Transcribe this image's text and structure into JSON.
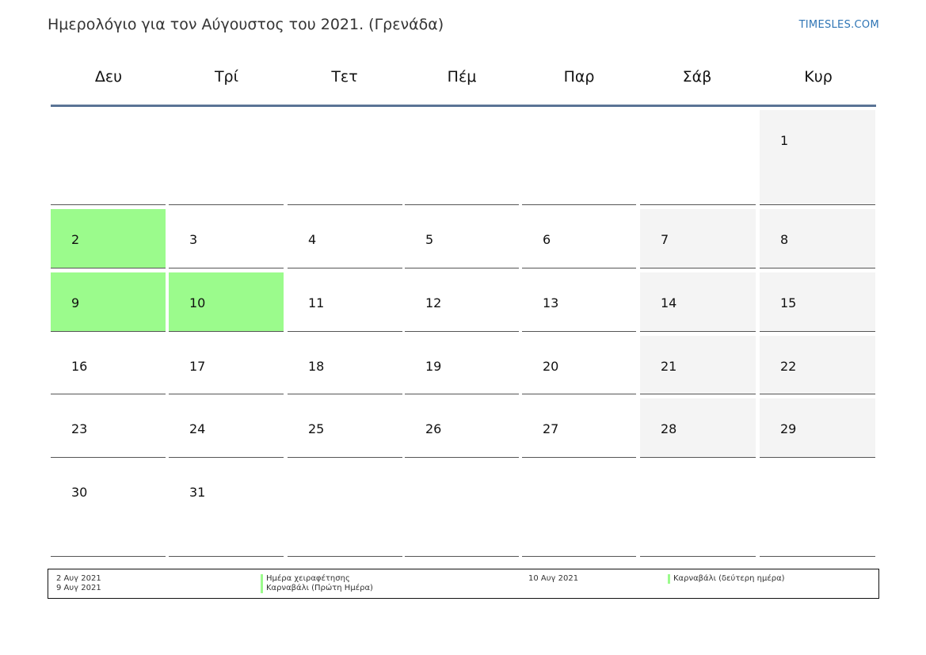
{
  "header": {
    "title": "Ημερολόγιο για τον Αύγουστος του 2021. (Γρενάδα)",
    "site": "TIMESLES.COM"
  },
  "colors": {
    "holiday": "#9bfb8c",
    "weekend": "#f4f4f4",
    "header_rule": "#5a7495",
    "link": "#2f75b5"
  },
  "weekdays": [
    "Δευ",
    "Τρί",
    "Τετ",
    "Πέμ",
    "Παρ",
    "Σάβ",
    "Κυρ"
  ],
  "weeks": [
    [
      "",
      "",
      "",
      "",
      "",
      "",
      "1"
    ],
    [
      "2",
      "3",
      "4",
      "5",
      "6",
      "7",
      "8"
    ],
    [
      "9",
      "10",
      "11",
      "12",
      "13",
      "14",
      "15"
    ],
    [
      "16",
      "17",
      "18",
      "19",
      "20",
      "21",
      "22"
    ],
    [
      "23",
      "24",
      "25",
      "26",
      "27",
      "28",
      "29"
    ],
    [
      "30",
      "31",
      "",
      "",
      "",
      "",
      ""
    ]
  ],
  "holiday_days": [
    "2",
    "9",
    "10"
  ],
  "legend": [
    {
      "date": "2 Αυγ 2021",
      "name": "Ημέρα χειραφέτησης"
    },
    {
      "date": "9 Αυγ 2021",
      "name": "Καρναβάλι (Πρώτη Ημέρα)"
    },
    {
      "date": "10 Αυγ 2021",
      "name": "Καρναβάλι (δεύτερη ημέρα)"
    }
  ]
}
